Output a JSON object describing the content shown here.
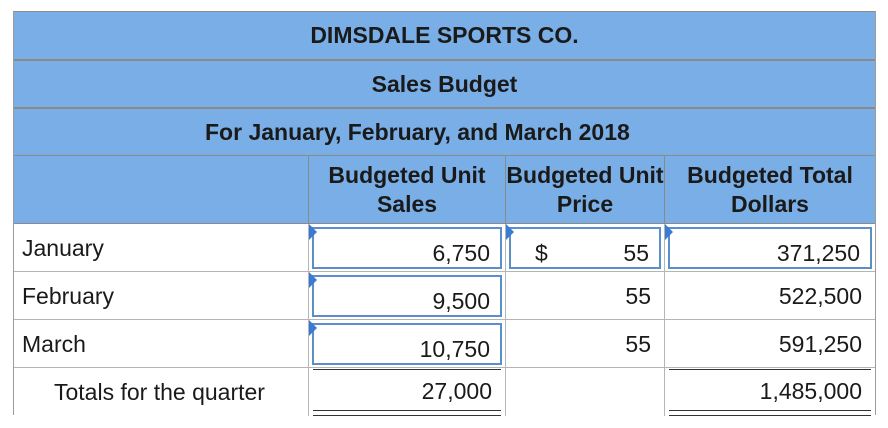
{
  "header": {
    "company": "DIMSDALE SPORTS CO.",
    "title": "Sales Budget",
    "period": "For January, February, and March 2018"
  },
  "columns": {
    "units": "Budgeted Unit Sales",
    "price": "Budgeted Unit Price",
    "total": "Budgeted Total Dollars"
  },
  "rows": [
    {
      "label": "January",
      "units": "6,750",
      "currency": "$",
      "price": "55",
      "total": "371,250"
    },
    {
      "label": "February",
      "units": "9,500",
      "price": "55",
      "total": "522,500"
    },
    {
      "label": "March",
      "units": "10,750",
      "price": "55",
      "total": "591,250"
    }
  ],
  "totals": {
    "label": "Totals for the quarter",
    "units": "27,000",
    "total": "1,485,000"
  },
  "colors": {
    "header_fill": "#7aaee6",
    "input_border": "#5b8fc9",
    "flag": "#3a7bd5"
  }
}
